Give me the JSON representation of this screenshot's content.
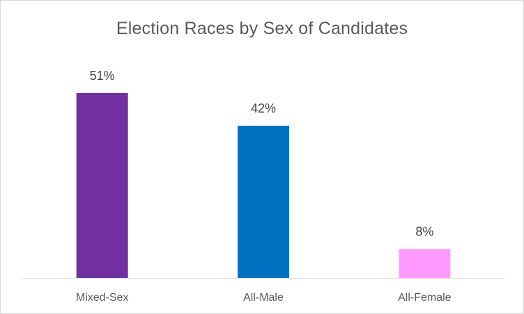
{
  "chart_data": {
    "type": "bar",
    "title": "Election Races by Sex of Candidates",
    "categories": [
      "Mixed-Sex",
      "All-Male",
      "All-Female"
    ],
    "values": [
      51,
      42,
      8
    ],
    "data_labels": [
      "51%",
      "42%",
      "8%"
    ],
    "colors": [
      "#7030a0",
      "#0070c0",
      "#ff99ff"
    ],
    "axis_color": "#d9d9d9",
    "xlabel": "",
    "ylabel": "",
    "ylim": [
      0,
      51
    ],
    "grid": false,
    "legend": "none"
  }
}
